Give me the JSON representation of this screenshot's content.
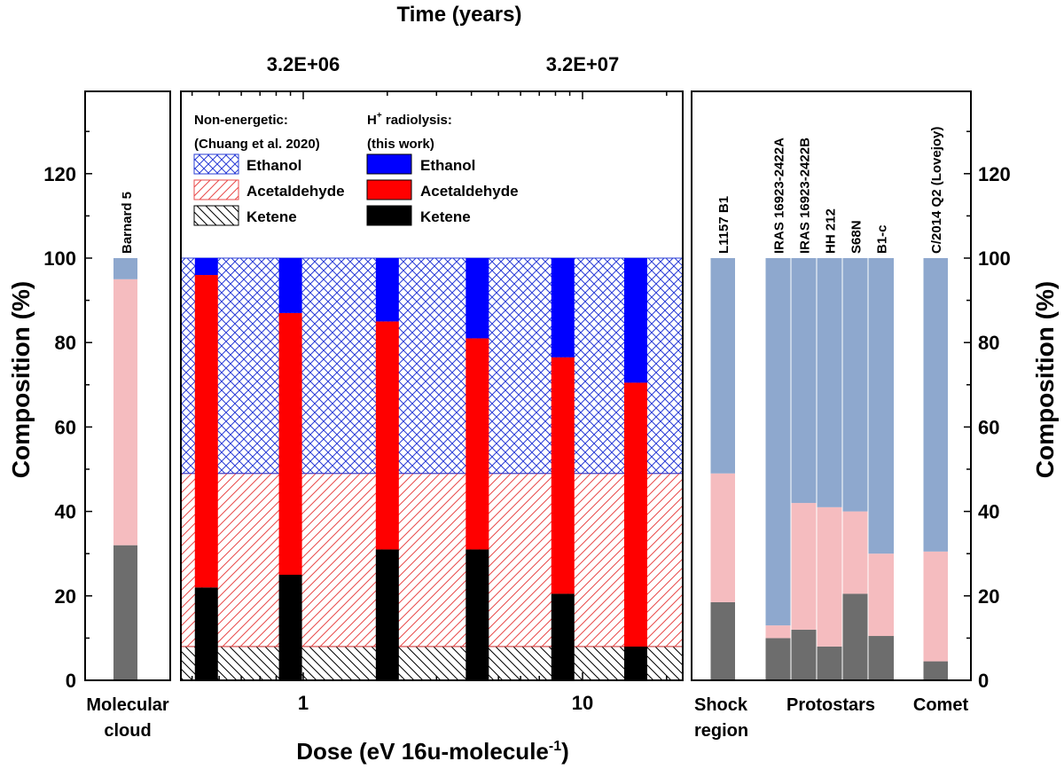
{
  "chart_data": {
    "type": "bar",
    "ylabel": "Composition (%)",
    "ylim": [
      0,
      140
    ],
    "yticks": [
      0,
      20,
      40,
      60,
      80,
      100,
      120
    ],
    "xlabel_bottom": "Dose (eV 16u-molecule",
    "xlabel_bottom_sup": "-1",
    "xlabel_bottom_close": ")",
    "xlabel_top": "Time (years)",
    "dose_ticks": [
      {
        "label": "1",
        "value": 1
      },
      {
        "label": "10",
        "value": 10
      }
    ],
    "time_ticks": [
      {
        "label": "3.2E+06",
        "dose": 1
      },
      {
        "label": "3.2E+07",
        "dose": 10
      }
    ],
    "colors": {
      "ethanol": "#0000ff",
      "acetaldehyde": "#ff0000",
      "ketene": "#000000",
      "obs_ethanol": "#8ea8ce",
      "obs_acetaldehyde": "#f5bcbf",
      "obs_ketene": "#6d6d6d",
      "hatch_ethanol": "#2a3dd6",
      "hatch_acetaldehyde": "#e84a4a",
      "hatch_ketene": "#000000"
    },
    "molecular_cloud": {
      "group_label": "Molecular cloud",
      "bars": [
        {
          "label": "Barnard 5",
          "ketene": 32,
          "acetaldehyde": 63,
          "ethanol": 5
        }
      ]
    },
    "non_energetic": {
      "heading": "Non-energetic:",
      "reference": "(Chuang et al. 2020)",
      "ketene": 8,
      "acetaldehyde": 41,
      "ethanol": 51
    },
    "radiolysis": {
      "heading_main": "H",
      "heading_sup": "+",
      "heading_rest": " radiolysis:",
      "reference": "(this work)",
      "series_names": [
        "Ethanol",
        "Acetaldehyde",
        "Ketene"
      ],
      "bars": [
        {
          "dose": 0.45,
          "ketene": 22,
          "acetaldehyde": 74,
          "ethanol": 4
        },
        {
          "dose": 0.9,
          "ketene": 25,
          "acetaldehyde": 62,
          "ethanol": 13
        },
        {
          "dose": 2.0,
          "ketene": 31,
          "acetaldehyde": 54,
          "ethanol": 15
        },
        {
          "dose": 4.2,
          "ketene": 31,
          "acetaldehyde": 50,
          "ethanol": 19
        },
        {
          "dose": 8.5,
          "ketene": 20.5,
          "acetaldehyde": 56,
          "ethanol": 23.5
        },
        {
          "dose": 15.5,
          "ketene": 8,
          "acetaldehyde": 62.5,
          "ethanol": 29.5
        }
      ]
    },
    "legend_left": [
      "Ethanol",
      "Acetaldehyde",
      "Ketene"
    ],
    "observations": {
      "groups": [
        {
          "label": "Shock region"
        },
        {
          "label": "Protostars"
        },
        {
          "label": "Comet"
        }
      ],
      "bars": [
        {
          "label": "L1157 B1",
          "ketene": 18.5,
          "acetaldehyde": 30.5,
          "ethanol": 51
        },
        {
          "label": "IRAS 16923-2422A",
          "ketene": 10,
          "acetaldehyde": 3,
          "ethanol": 87
        },
        {
          "label": "IRAS 16923-2422B",
          "ketene": 12,
          "acetaldehyde": 30,
          "ethanol": 58
        },
        {
          "label": "HH 212",
          "ketene": 8,
          "acetaldehyde": 33,
          "ethanol": 59
        },
        {
          "label": "S68N",
          "ketene": 20.5,
          "acetaldehyde": 19.5,
          "ethanol": 60
        },
        {
          "label": "B1-c",
          "ketene": 10.5,
          "acetaldehyde": 19.5,
          "ethanol": 70
        },
        {
          "label": "C/2014 Q2 (Lovejoy)",
          "ketene": 4.5,
          "acetaldehyde": 26,
          "ethanol": 69.5
        }
      ]
    }
  }
}
